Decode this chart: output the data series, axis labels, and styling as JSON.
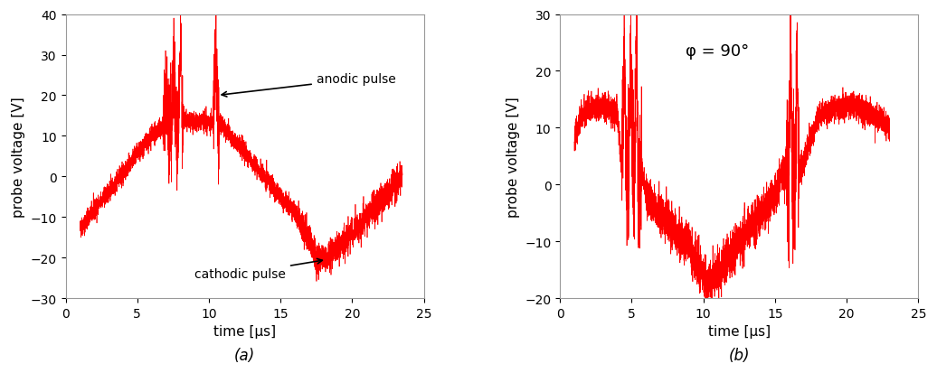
{
  "fig_width": 10.36,
  "fig_height": 4.14,
  "dpi": 100,
  "line_color": "#FF0000",
  "line_width": 0.5,
  "background_color": "#FFFFFF",
  "panel_a": {
    "xlabel": "time [μs]",
    "ylabel": "probe voltage [V]",
    "xlim": [
      0,
      25
    ],
    "ylim": [
      -30,
      40
    ],
    "xticks": [
      0,
      5,
      10,
      15,
      20,
      25
    ],
    "yticks": [
      -30,
      -20,
      -10,
      0,
      10,
      20,
      30,
      40
    ],
    "label": "(a)",
    "anodic_text": "anodic pulse",
    "cathodic_text": "cathodic pulse"
  },
  "panel_b": {
    "xlabel": "time [μs]",
    "ylabel": "probe voltage [V]",
    "xlim": [
      0,
      25
    ],
    "ylim": [
      -20,
      30
    ],
    "xticks": [
      0,
      5,
      10,
      15,
      20,
      25
    ],
    "yticks": [
      -20,
      -10,
      0,
      10,
      20,
      30
    ],
    "label": "(b)",
    "phi_text": "φ = 90°"
  },
  "n_points": 5000,
  "noise_base": 1.2,
  "noise_spike": 6.0,
  "noise_cathodic": 1.8
}
